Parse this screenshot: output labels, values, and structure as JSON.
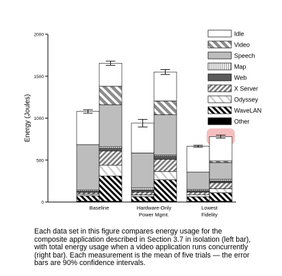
{
  "chart_data": {
    "type": "bar",
    "stacked": true,
    "ylabel": "Energy (Joules)",
    "ylim": [
      0,
      2000
    ],
    "yticks": [
      "0",
      "500",
      "1000",
      "1500",
      "2000"
    ],
    "groups": [
      "Baseline",
      "Hardware-Only Power Mgmt.",
      "Lowest Fidelity"
    ],
    "group_label_lines": [
      [
        "Baseline"
      ],
      [
        "Hardware-Only",
        "Power Mgmt."
      ],
      [
        "Lowest",
        "Fidelity"
      ]
    ],
    "components": [
      "Idle",
      "Video",
      "Speech",
      "Map",
      "Web",
      "X Server",
      "Odyssey",
      "WaveLAN",
      "Other"
    ],
    "component_styles": [
      {
        "fill": "#ffffff",
        "pattern": "none"
      },
      {
        "fill": "#ffffff",
        "pattern": "diag-grey-wide"
      },
      {
        "fill": "#bdbdbd",
        "pattern": "none"
      },
      {
        "fill": "#ffffff",
        "pattern": "vertical-lines"
      },
      {
        "fill": "#5a5a5a",
        "pattern": "none"
      },
      {
        "fill": "#ffffff",
        "pattern": "diag-grey-dense"
      },
      {
        "fill": "#ffffff",
        "pattern": "diag-light"
      },
      {
        "fill": "#ffffff",
        "pattern": "diag-black"
      },
      {
        "fill": "#000000",
        "pattern": "none"
      }
    ],
    "bars": [
      {
        "group": 0,
        "position": "left",
        "total": 1080,
        "error": 20,
        "values": {
          "Other": 10,
          "WaveLAN": 65,
          "Odyssey": 20,
          "X Server": 20,
          "Web": 15,
          "Map": 15,
          "Speech": 540,
          "Video": 0,
          "Idle": 395
        }
      },
      {
        "group": 0,
        "position": "right",
        "total": 1655,
        "error": 25,
        "values": {
          "Other": 10,
          "WaveLAN": 300,
          "Odyssey": 130,
          "X Server": 170,
          "Web": 30,
          "Map": 20,
          "Speech": 500,
          "Video": 220,
          "Idle": 275
        }
      },
      {
        "group": 1,
        "position": "left",
        "total": 940,
        "error": 45,
        "values": {
          "Other": 10,
          "WaveLAN": 55,
          "Odyssey": 20,
          "X Server": 35,
          "Web": 25,
          "Map": 25,
          "Speech": 415,
          "Video": 0,
          "Idle": 355
        }
      },
      {
        "group": 1,
        "position": "right",
        "total": 1550,
        "error": 30,
        "values": {
          "Other": 10,
          "WaveLAN": 255,
          "Odyssey": 100,
          "X Server": 145,
          "Web": 35,
          "Map": 15,
          "Speech": 480,
          "Video": 165,
          "Idle": 345
        }
      },
      {
        "group": 2,
        "position": "left",
        "total": 665,
        "error": 12,
        "values": {
          "Other": 8,
          "WaveLAN": 55,
          "Odyssey": 25,
          "X Server": 30,
          "Web": 15,
          "Map": 15,
          "Speech": 210,
          "Video": 0,
          "Idle": 307
        }
      },
      {
        "group": 2,
        "position": "right",
        "total": 780,
        "error": 18,
        "values": {
          "Other": 10,
          "WaveLAN": 100,
          "Odyssey": 50,
          "X Server": 70,
          "Web": 20,
          "Map": 20,
          "Speech": 200,
          "Video": 20,
          "Idle": 290
        }
      }
    ],
    "legend_position": "top-right",
    "grid": false,
    "highlight": {
      "bar": 5,
      "color": "#f4b4b4"
    }
  },
  "caption": "Each data set in this figure compares energy usage for the composite application described in Section 3.7 in isolation (left bar), with total energy usage when a video application runs concurrently (right bar). Each measurement is the mean of five trials — the error bars are 90% confidence intervals."
}
